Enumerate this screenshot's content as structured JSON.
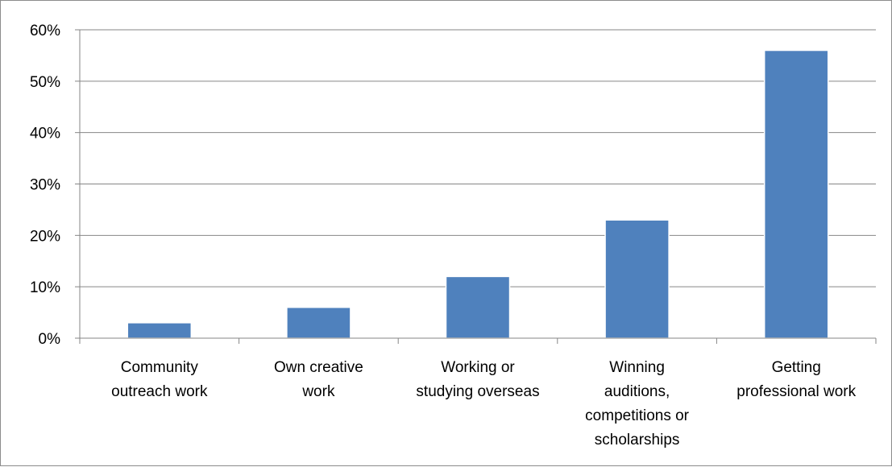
{
  "chart_data": {
    "type": "bar",
    "title": "",
    "xlabel": "",
    "ylabel": "",
    "categories": [
      [
        "Community",
        "outreach work"
      ],
      [
        "Own creative",
        "work"
      ],
      [
        "Working or",
        "studying overseas"
      ],
      [
        "Winning",
        "auditions,",
        "competitions or",
        "scholarships"
      ],
      [
        "Getting",
        "professional work"
      ]
    ],
    "values": [
      3,
      6,
      12,
      23,
      56
    ],
    "value_unit": "%",
    "ylim": [
      0,
      60
    ],
    "yticks": [
      "0%",
      "10%",
      "20%",
      "30%",
      "40%",
      "50%",
      "60%"
    ],
    "grid": true,
    "legend": "none",
    "colors": {
      "bar": "#4F81BD",
      "bar_edge": "#ffffff",
      "grid": "#868686",
      "axis": "#868686",
      "text": "#000000"
    }
  }
}
